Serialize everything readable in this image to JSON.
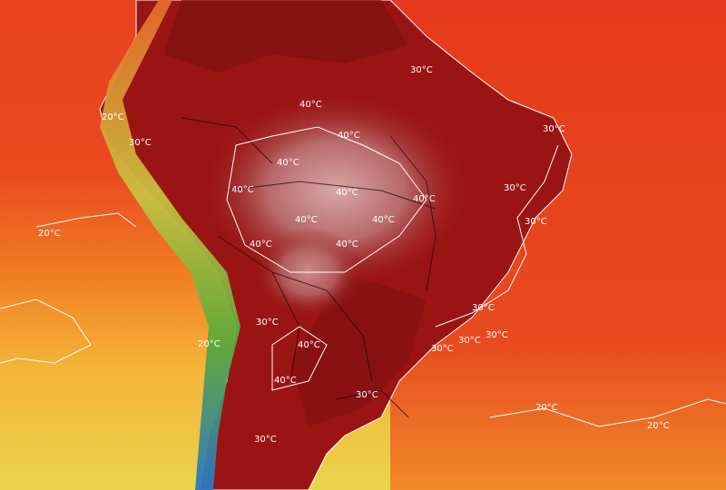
{
  "map": {
    "palette": {
      "ocean_hot": "#e8421e",
      "ocean_warm": "#f07a22",
      "ocean_mild": "#f5b437",
      "ocean_cool": "#e9d44c",
      "land_hot": "#9b1414",
      "land_hotter": "#7e0f10",
      "land_extreme": "#c98c8c",
      "andes_green": "#5aa83a",
      "andes_blue": "#2a76c7",
      "contour": "#ffffff",
      "border": "#1b0a0a"
    },
    "contour_labels": [
      {
        "id": "c1",
        "text": "30°C"
      },
      {
        "id": "c2",
        "text": "20°C"
      },
      {
        "id": "c3",
        "text": "30°C"
      },
      {
        "id": "c4",
        "text": "40°C"
      },
      {
        "id": "c5",
        "text": "40°C"
      },
      {
        "id": "c6",
        "text": "40°C"
      },
      {
        "id": "c7",
        "text": "40°C"
      },
      {
        "id": "c8",
        "text": "40°C"
      },
      {
        "id": "c9",
        "text": "40°C"
      },
      {
        "id": "c10",
        "text": "40°C"
      },
      {
        "id": "c11",
        "text": "40°C"
      },
      {
        "id": "c12",
        "text": "40°C"
      },
      {
        "id": "c13",
        "text": "40°C"
      },
      {
        "id": "c14",
        "text": "30°C"
      },
      {
        "id": "c15",
        "text": "30°C"
      },
      {
        "id": "c16",
        "text": "30°C"
      },
      {
        "id": "c17",
        "text": "20°C"
      },
      {
        "id": "c18",
        "text": "40°C"
      },
      {
        "id": "c19",
        "text": "30°C"
      },
      {
        "id": "c20",
        "text": "30°C"
      },
      {
        "id": "c21",
        "text": "30°C"
      },
      {
        "id": "c22",
        "text": "30°C"
      },
      {
        "id": "c23",
        "text": "40°C"
      },
      {
        "id": "c24",
        "text": "30°C"
      },
      {
        "id": "c25",
        "text": "20°C"
      },
      {
        "id": "c26",
        "text": "30°C"
      },
      {
        "id": "c27",
        "text": "20°C"
      },
      {
        "id": "c28",
        "text": "20°C"
      },
      {
        "id": "c29",
        "text": "30°C"
      }
    ]
  }
}
